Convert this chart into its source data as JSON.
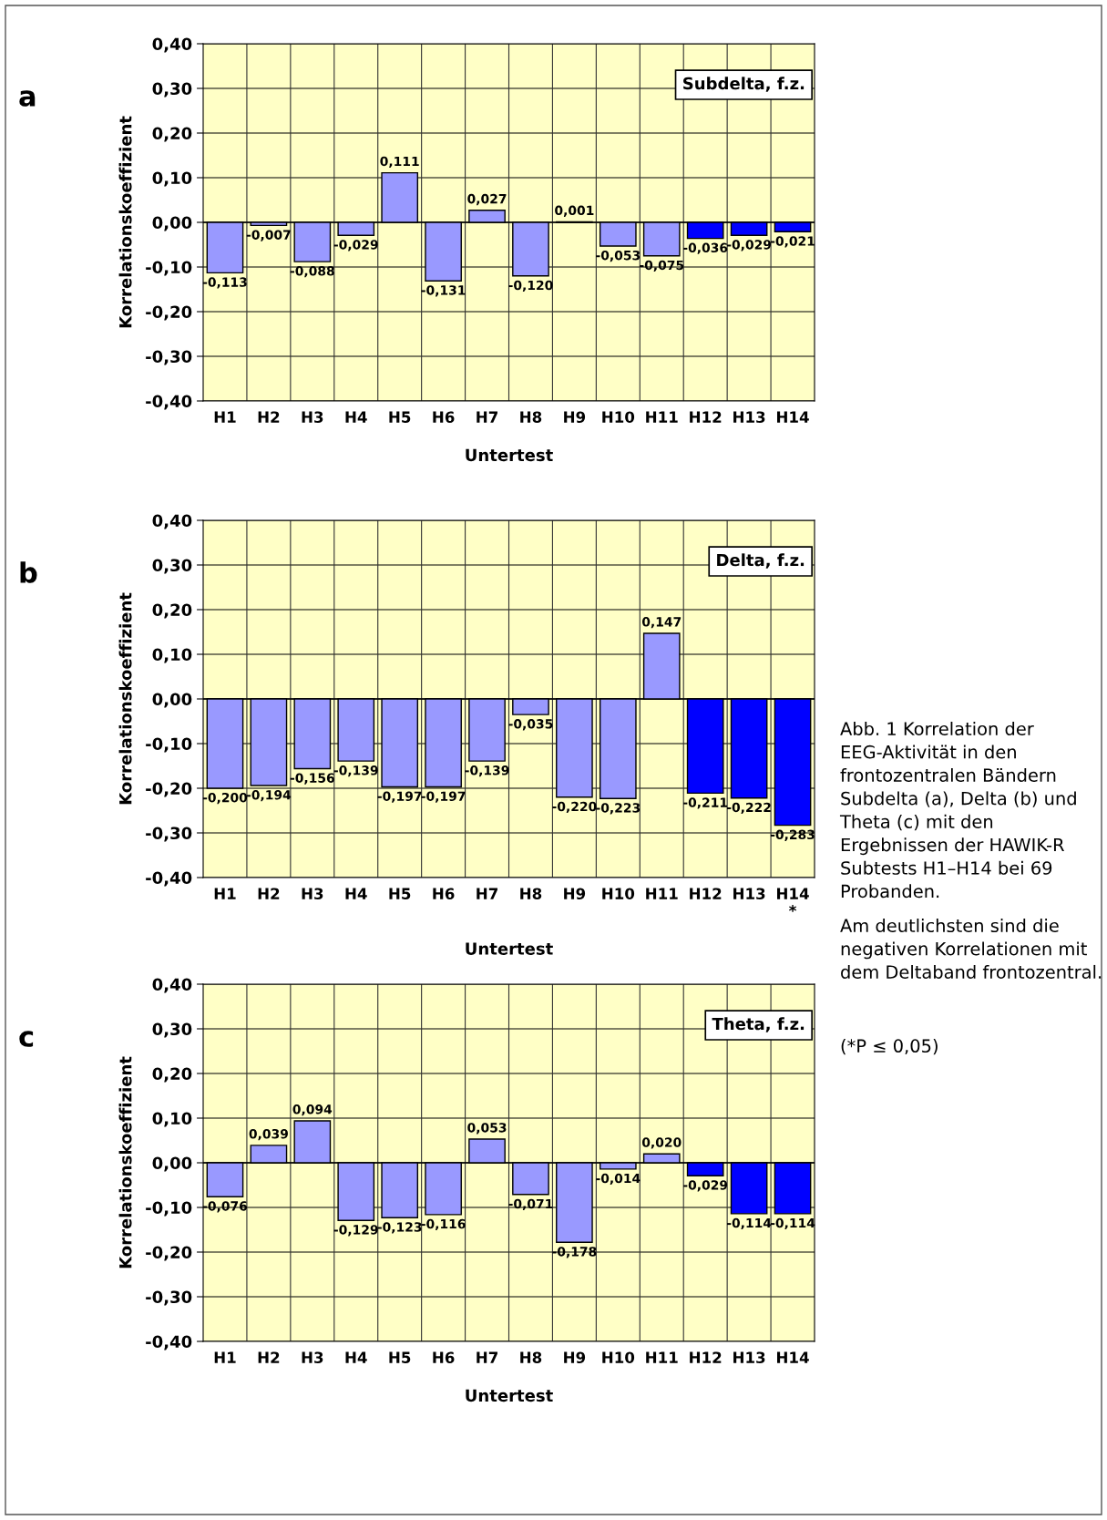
{
  "chart_data": [
    {
      "type": "bar",
      "title": "a",
      "subtitle": "Subdelta, f.z.",
      "xlabel": "Untertest",
      "ylabel": "Korrelationskoeffizient",
      "categories": [
        "H1",
        "H2",
        "H3",
        "H4",
        "H5",
        "H6",
        "H7",
        "H8",
        "H9",
        "H10",
        "H11",
        "H12",
        "H13",
        "H14"
      ],
      "values": [
        -0.113,
        -0.007,
        -0.088,
        -0.029,
        0.111,
        -0.131,
        0.027,
        -0.12,
        0.001,
        -0.053,
        -0.075,
        -0.036,
        -0.029,
        -0.021
      ],
      "value_labels": [
        "-0,113",
        "-0,007",
        "-0,088",
        "-0,029",
        "0,111",
        "-0,131",
        "0,027",
        "-0,120",
        "0,001",
        "-0,053",
        "-0,075",
        "-0,036",
        "-0,029",
        "-0,021"
      ],
      "colors": [
        "#9999ff",
        "#9999ff",
        "#9999ff",
        "#9999ff",
        "#9999ff",
        "#9999ff",
        "#9999ff",
        "#9999ff",
        "#9999ff",
        "#9999ff",
        "#9999ff",
        "#0000ff",
        "#0000ff",
        "#0000ff"
      ],
      "ylim": [
        -0.4,
        0.4
      ],
      "yticks": [
        {
          "value": -0.4,
          "label": "-0,40"
        },
        {
          "value": -0.3,
          "label": "-0,30"
        },
        {
          "value": -0.2,
          "label": "-0,20"
        },
        {
          "value": -0.1,
          "label": "-0,10"
        },
        {
          "value": 0,
          "label": "0,00"
        },
        {
          "value": 0.1,
          "label": "0,10"
        },
        {
          "value": 0.2,
          "label": "0,20"
        },
        {
          "value": 0.3,
          "label": "0,30"
        },
        {
          "value": 0.4,
          "label": "0,40"
        }
      ],
      "grid": true
    },
    {
      "type": "bar",
      "title": "b",
      "subtitle": "Delta, f.z.",
      "xlabel": "Untertest",
      "ylabel": "Korrelationskoeffizient",
      "categories": [
        "H1",
        "H2",
        "H3",
        "H4",
        "H5",
        "H6",
        "H7",
        "H8",
        "H9",
        "H10",
        "H11",
        "H12",
        "H13",
        "H14\n*"
      ],
      "values": [
        -0.2,
        -0.194,
        -0.156,
        -0.139,
        -0.197,
        -0.197,
        -0.139,
        -0.035,
        -0.22,
        -0.223,
        0.147,
        -0.211,
        -0.222,
        -0.283
      ],
      "value_labels": [
        "-0,200",
        "-0,194",
        "-0,156",
        "-0,139",
        "-0,197",
        "-0,197",
        "-0,139",
        "-0,035",
        "-0,220",
        "-0,223",
        "0,147",
        "-0,211",
        "-0,222",
        "-0,283"
      ],
      "colors": [
        "#9999ff",
        "#9999ff",
        "#9999ff",
        "#9999ff",
        "#9999ff",
        "#9999ff",
        "#9999ff",
        "#9999ff",
        "#9999ff",
        "#9999ff",
        "#9999ff",
        "#0000ff",
        "#0000ff",
        "#0000ff"
      ],
      "ylim": [
        -0.4,
        0.4
      ],
      "yticks": [
        {
          "value": -0.4,
          "label": "-0,40"
        },
        {
          "value": -0.3,
          "label": "-0,30"
        },
        {
          "value": -0.2,
          "label": "-0,20"
        },
        {
          "value": -0.1,
          "label": "-0,10"
        },
        {
          "value": 0,
          "label": "0,00"
        },
        {
          "value": 0.1,
          "label": "0,10"
        },
        {
          "value": 0.2,
          "label": "0,20"
        },
        {
          "value": 0.3,
          "label": "0,30"
        },
        {
          "value": 0.4,
          "label": "0,40"
        }
      ],
      "grid": true,
      "annotations": [
        "Abb. 1 Korrelation der EEG-Aktivität in den frontozentralen Bändern Subdelta (a), Delta (b) und Theta (c) mit den Ergebnissen der HAWIK-R Subtests H1–H14 bei 69 Probanden.",
        "Am deutlichsten sind die negativen Korrelationen mit dem Deltaband frontozentral.",
        "(*P ≤ 0,05)"
      ]
    },
    {
      "type": "bar",
      "title": "c",
      "subtitle": "Theta, f.z.",
      "xlabel": "Untertest",
      "ylabel": "Korrelationskoeffizient",
      "categories": [
        "H1",
        "H2",
        "H3",
        "H4",
        "H5",
        "H6",
        "H7",
        "H8",
        "H9",
        "H10",
        "H11",
        "H12",
        "H13",
        "H14"
      ],
      "values": [
        -0.076,
        0.039,
        0.094,
        -0.129,
        -0.123,
        -0.116,
        0.053,
        -0.071,
        -0.178,
        -0.014,
        0.02,
        -0.029,
        -0.114,
        -0.114
      ],
      "value_labels": [
        "-0,076",
        "0,039",
        "0,094",
        "-0,129",
        "-0,123",
        "-0,116",
        "0,053",
        "-0,071",
        "-0,178",
        "-0,014",
        "0,020",
        "-0,029",
        "-0,114",
        "-0,114"
      ],
      "colors": [
        "#9999ff",
        "#9999ff",
        "#9999ff",
        "#9999ff",
        "#9999ff",
        "#9999ff",
        "#9999ff",
        "#9999ff",
        "#9999ff",
        "#9999ff",
        "#9999ff",
        "#0000ff",
        "#0000ff",
        "#0000ff"
      ],
      "ylim": [
        -0.4,
        0.4
      ],
      "yticks": [
        {
          "value": -0.4,
          "label": "-0,40"
        },
        {
          "value": -0.3,
          "label": "-0,30"
        },
        {
          "value": -0.2,
          "label": "-0,20"
        },
        {
          "value": -0.1,
          "label": "-0,10"
        },
        {
          "value": 0,
          "label": "0,00"
        },
        {
          "value": 0.1,
          "label": "0,10"
        },
        {
          "value": 0.2,
          "label": "0,20"
        },
        {
          "value": 0.3,
          "label": "0,30"
        },
        {
          "value": 0.4,
          "label": "0,40"
        }
      ],
      "grid": true
    }
  ]
}
